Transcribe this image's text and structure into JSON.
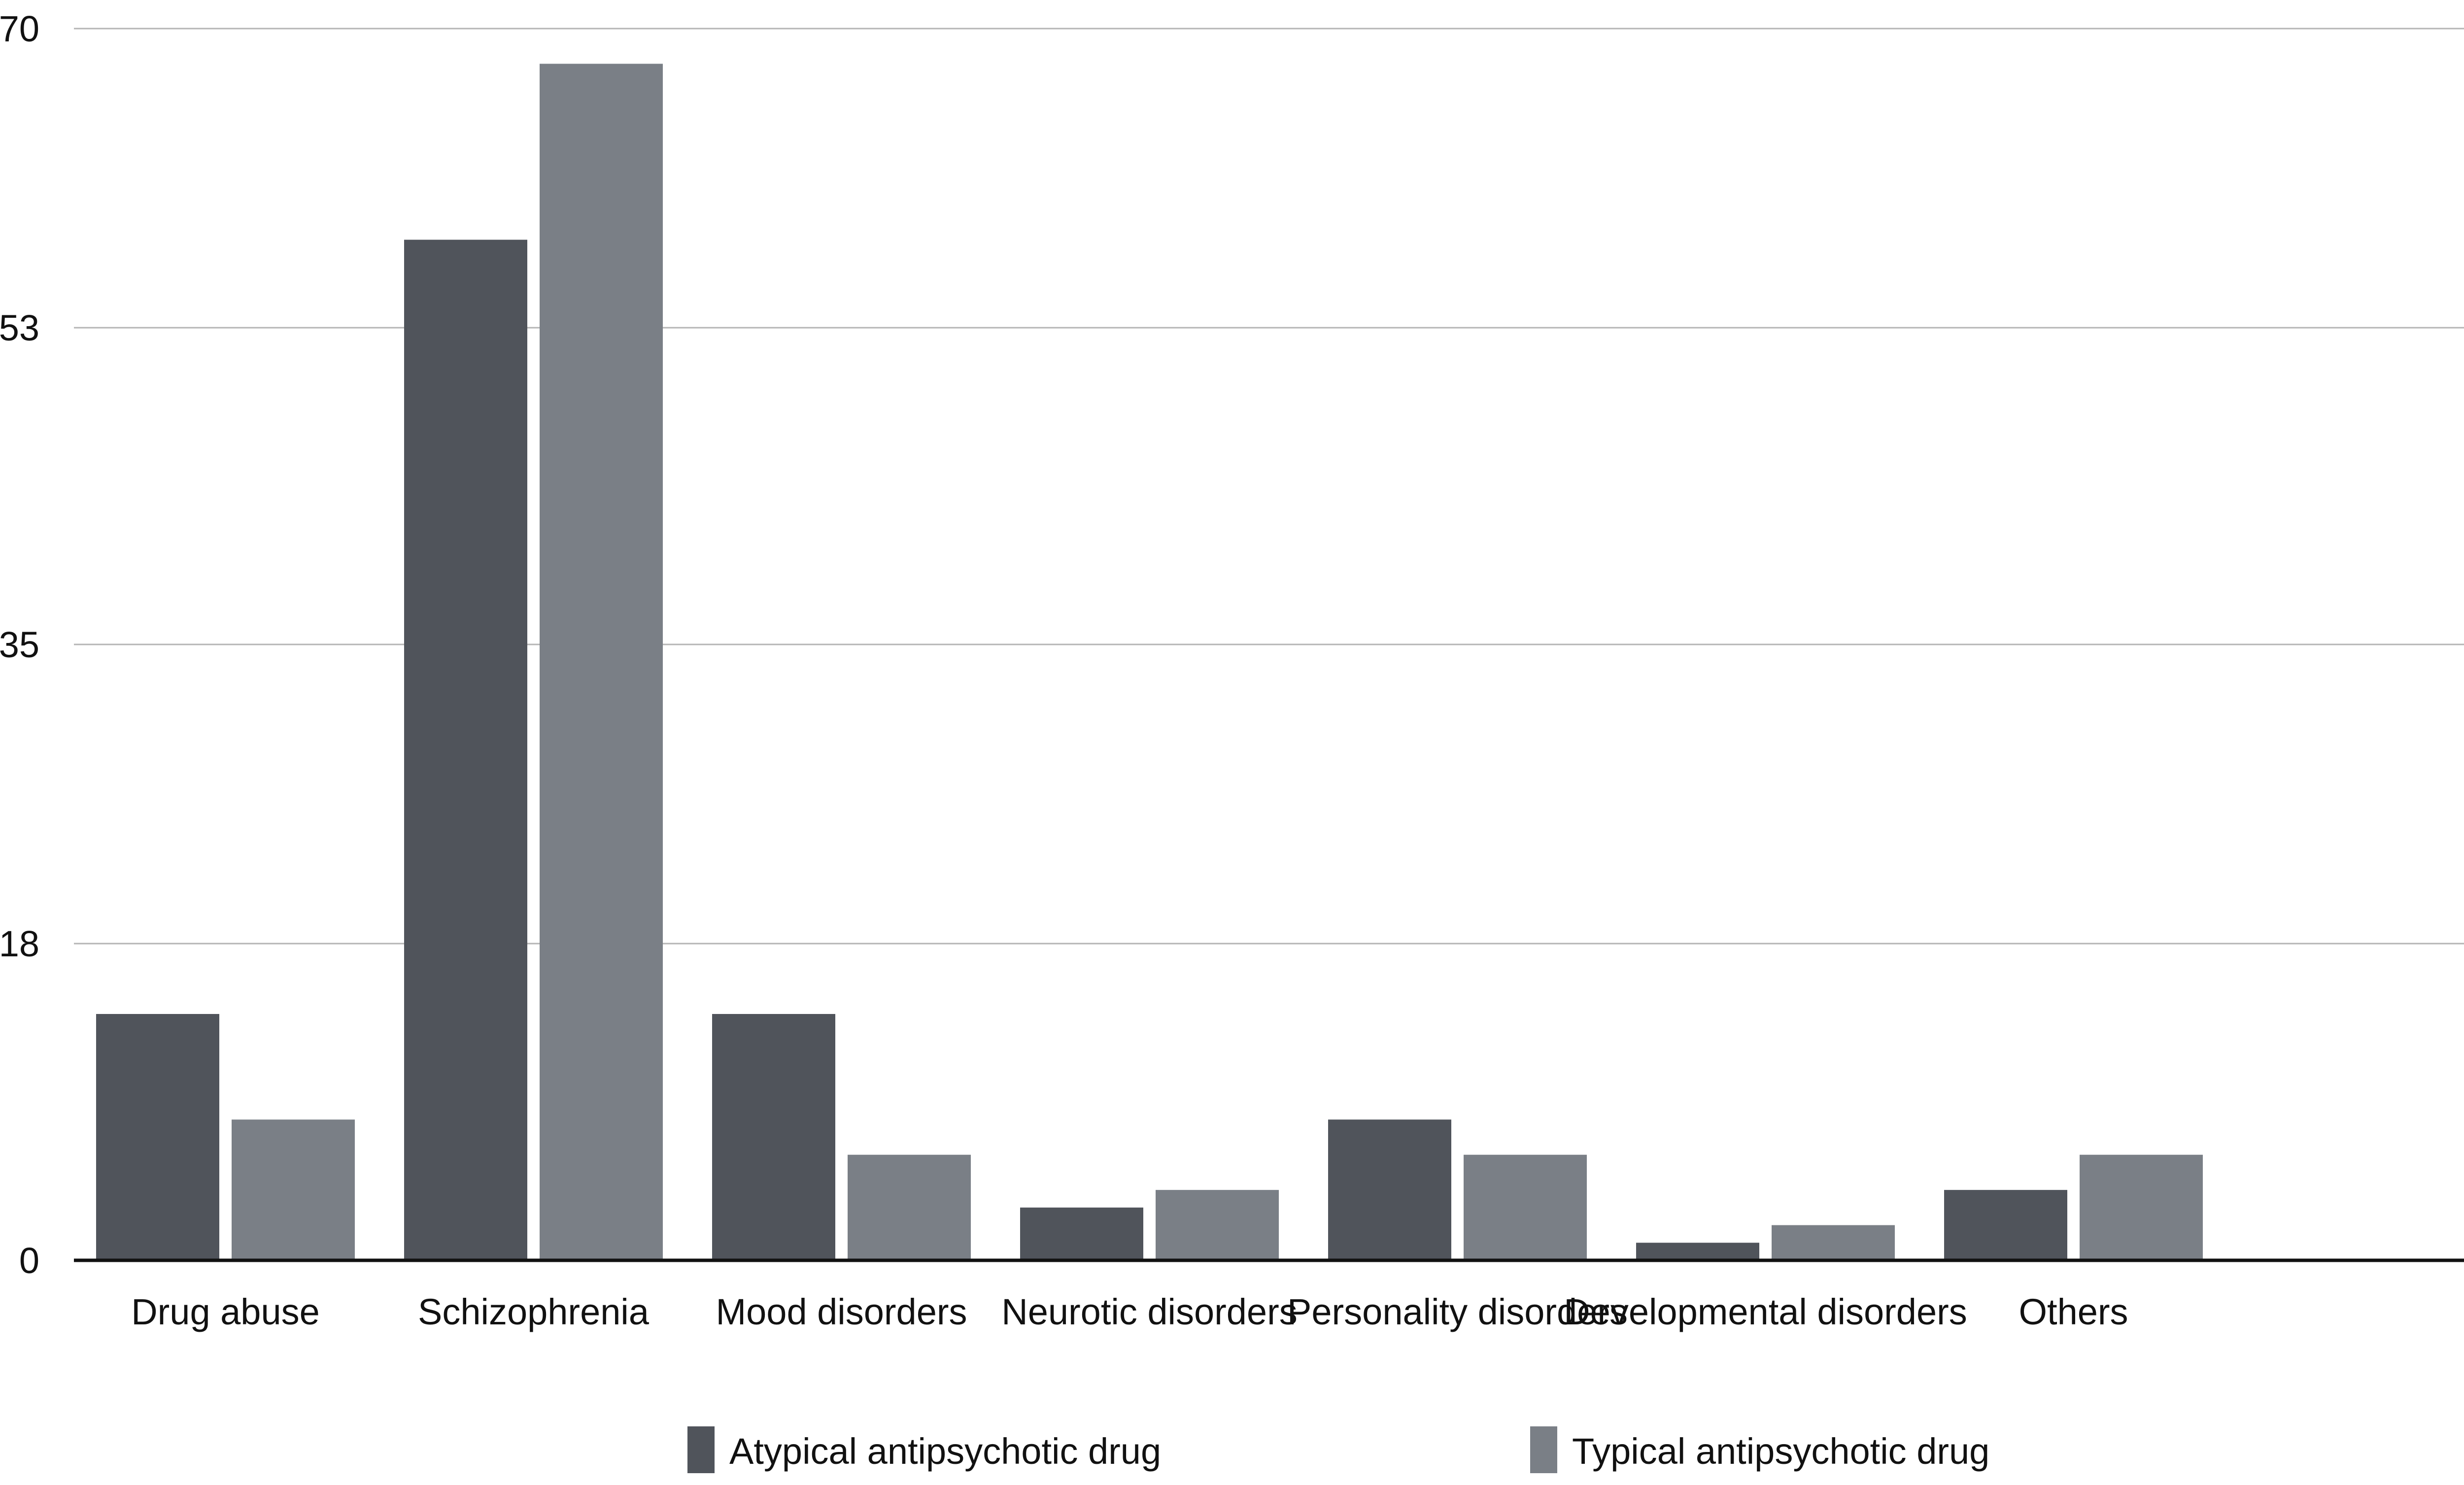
{
  "chart_data": {
    "type": "bar",
    "title": "",
    "xlabel": "",
    "ylabel": "",
    "ylim": [
      0,
      70
    ],
    "yticks": [
      "0",
      "18",
      "35",
      "53",
      "70"
    ],
    "grid": "horizontal",
    "legend_position": "bottom",
    "categories": [
      "Drug abuse",
      "Schizophrenia",
      "Mood disorders",
      "Neurotic disorders",
      "Personality disorders",
      "Developmental disorders",
      "Others"
    ],
    "series": [
      {
        "name": "Atypical antipsychotic drug",
        "color": "#50545b",
        "values": [
          14,
          58,
          14,
          3,
          8,
          1,
          4
        ]
      },
      {
        "name": "Typical  antipsychotic drug",
        "color": "#7a7f86",
        "values": [
          8,
          68,
          6,
          4,
          6,
          2,
          6
        ]
      }
    ]
  }
}
